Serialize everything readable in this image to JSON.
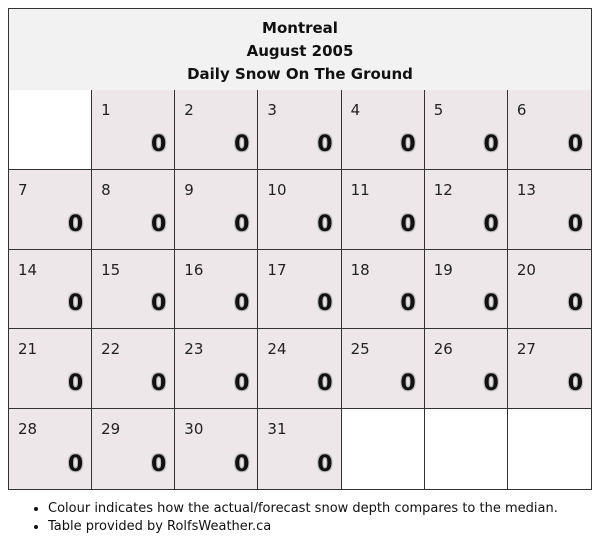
{
  "header": {
    "city": "Montreal",
    "month": "August 2005",
    "title": "Daily Snow On The Ground"
  },
  "calendar": {
    "leading_blanks": 1,
    "trailing_blanks": 3,
    "days": [
      {
        "day": "1",
        "value": "0"
      },
      {
        "day": "2",
        "value": "0"
      },
      {
        "day": "3",
        "value": "0"
      },
      {
        "day": "4",
        "value": "0"
      },
      {
        "day": "5",
        "value": "0"
      },
      {
        "day": "6",
        "value": "0"
      },
      {
        "day": "7",
        "value": "0"
      },
      {
        "day": "8",
        "value": "0"
      },
      {
        "day": "9",
        "value": "0"
      },
      {
        "day": "10",
        "value": "0"
      },
      {
        "day": "11",
        "value": "0"
      },
      {
        "day": "12",
        "value": "0"
      },
      {
        "day": "13",
        "value": "0"
      },
      {
        "day": "14",
        "value": "0"
      },
      {
        "day": "15",
        "value": "0"
      },
      {
        "day": "16",
        "value": "0"
      },
      {
        "day": "17",
        "value": "0"
      },
      {
        "day": "18",
        "value": "0"
      },
      {
        "day": "19",
        "value": "0"
      },
      {
        "day": "20",
        "value": "0"
      },
      {
        "day": "21",
        "value": "0"
      },
      {
        "day": "22",
        "value": "0"
      },
      {
        "day": "23",
        "value": "0"
      },
      {
        "day": "24",
        "value": "0"
      },
      {
        "day": "25",
        "value": "0"
      },
      {
        "day": "26",
        "value": "0"
      },
      {
        "day": "27",
        "value": "0"
      },
      {
        "day": "28",
        "value": "0"
      },
      {
        "day": "29",
        "value": "0"
      },
      {
        "day": "30",
        "value": "0"
      },
      {
        "day": "31",
        "value": "0"
      }
    ],
    "colors": {
      "day_cell": "#ede7ea",
      "blank_cell": "#ffffff",
      "header_bg": "#f2f2f2"
    }
  },
  "notes": [
    "Colour indicates how the actual/forecast snow depth compares to the median.",
    "Table provided by RolfsWeather.ca"
  ]
}
